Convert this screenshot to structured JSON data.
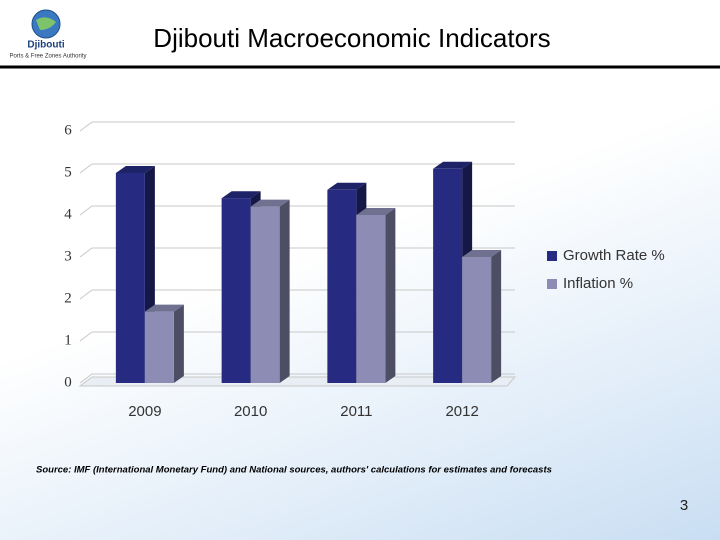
{
  "header": {
    "logo_name": "Djibouti",
    "logo_subtitle": "Ports & Free Zones Authority"
  },
  "chart_data": {
    "type": "bar",
    "title": "Djibouti Macroeconomic Indicators",
    "categories": [
      "2009",
      "2010",
      "2011",
      "2012"
    ],
    "series": [
      {
        "name": "Growth Rate %",
        "color": "#262a80",
        "values": [
          5.0,
          4.4,
          4.6,
          5.1
        ]
      },
      {
        "name": "Inflation %",
        "color": "#8c8cb4",
        "values": [
          1.7,
          4.2,
          4.0,
          3.0
        ]
      }
    ],
    "ylim": [
      0,
      6
    ],
    "yticks": [
      0,
      1,
      2,
      3,
      4,
      5,
      6
    ],
    "grid": true,
    "legend": "right"
  },
  "source": "Source: IMF (International Monetary Fund) and National sources, authors' calculations for estimates and forecasts",
  "page_number": "3"
}
